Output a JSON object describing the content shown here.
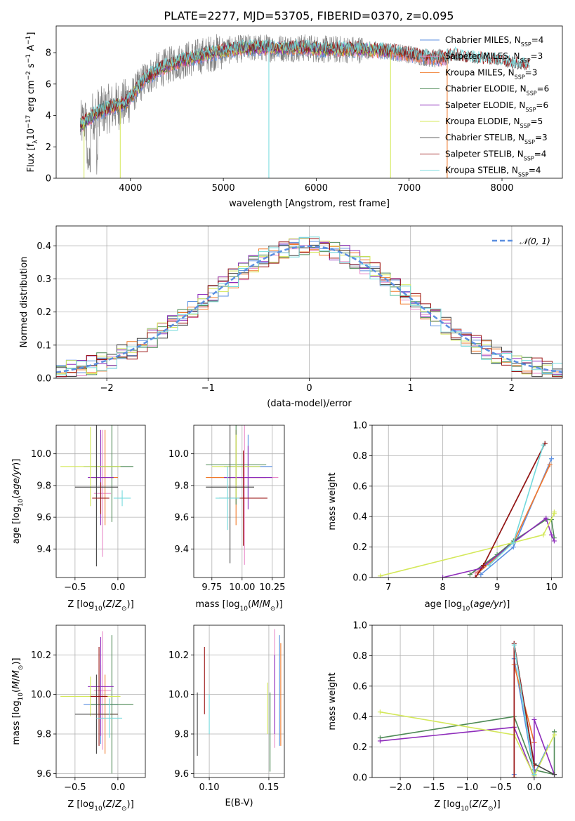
{
  "page": {
    "title": "PLATE=2277, MJD=53705, FIBERID=0370, z=0.095"
  },
  "colors": {
    "Chabrier MILES": "#5b8fe0",
    "Salpeter MILES": "#e88ac8",
    "Kroupa MILES": "#f07a2a",
    "Chabrier ELODIE": "#4e8a56",
    "Salpeter ELODIE": "#8e2dbb",
    "Kroupa ELODIE": "#d4e85a",
    "Chabrier STELIB": "#444444",
    "Salpeter STELIB": "#9b1616",
    "Kroupa STELIB": "#72d9dc",
    "spectrum": "#808080"
  },
  "legend": [
    {
      "name": "Chabrier MILES",
      "n": "4"
    },
    {
      "name": "Salpeter MILES",
      "n": "3"
    },
    {
      "name": "Kroupa MILES",
      "n": "3"
    },
    {
      "name": "Chabrier ELODIE",
      "n": "6"
    },
    {
      "name": "Salpeter ELODIE",
      "n": "6"
    },
    {
      "name": "Kroupa ELODIE",
      "n": "5"
    },
    {
      "name": "Chabrier STELIB",
      "n": "3"
    },
    {
      "name": "Salpeter STELIB",
      "n": "4"
    },
    {
      "name": "Kroupa STELIB",
      "n": "4"
    }
  ],
  "chart_data": [
    {
      "id": "spectrum",
      "type": "line",
      "xlabel": "wavelength [Angstrom, rest frame]",
      "ylabel": "Flux [f_λ 10^-17 erg cm^-2 s^-1 A^-1]",
      "xlim": [
        3200,
        8650
      ],
      "ylim": [
        0,
        9.7
      ],
      "xticks": [
        4000,
        5000,
        6000,
        7000,
        8000
      ],
      "yticks": [
        0,
        2,
        4,
        6,
        8
      ],
      "continuum": {
        "x": [
          3450,
          3550,
          3650,
          3800,
          3950,
          4050,
          4150,
          4300,
          4500,
          4700,
          4900,
          5100,
          5300,
          5500,
          5700,
          5900,
          6100,
          6300,
          6500,
          6700,
          6900,
          7100,
          7300,
          7500,
          7700,
          7900,
          8100,
          8300
        ],
        "y": [
          3.3,
          3.8,
          4.2,
          4.5,
          4.8,
          5.5,
          6.3,
          6.9,
          7.4,
          7.7,
          8.0,
          8.2,
          8.3,
          8.3,
          8.3,
          8.3,
          8.2,
          8.2,
          8.2,
          8.1,
          8.0,
          7.8,
          7.6,
          7.8,
          7.6,
          7.5,
          7.3,
          7.1
        ]
      },
      "features": [
        {
          "x": 3500,
          "note": "dip",
          "y": 0.0
        },
        {
          "x": 3890,
          "note": "dip",
          "y": 0.0
        },
        {
          "x": 5490,
          "note": "dip",
          "y": 0.0
        },
        {
          "x": 6800,
          "note": "dip",
          "y": 0.0
        },
        {
          "x": 7410,
          "note": "dip",
          "y": 0.0
        }
      ]
    },
    {
      "id": "residuals",
      "type": "histogram",
      "xlabel": "(data-model)/error",
      "ylabel": "Normed distribution",
      "xlim": [
        -2.5,
        2.5
      ],
      "ylim": [
        0,
        0.46
      ],
      "xticks": [
        -2,
        -1,
        0,
        1,
        2
      ],
      "yticks": [
        0.0,
        0.1,
        0.2,
        0.3,
        0.4
      ],
      "legend": "N(0,1)",
      "normal_color": "#5b8fe0",
      "bin_width": 0.1,
      "bin_start": -2.5
    },
    {
      "id": "age_vs_Z",
      "type": "errorbar",
      "xlabel": "Z [log10(Z/Z⊙)]",
      "ylabel": "age [log10(age/yr)]",
      "xlim": [
        -0.72,
        0.32
      ],
      "ylim": [
        9.22,
        10.18
      ],
      "xticks": [
        -0.5,
        0.0
      ],
      "yticks": [
        9.4,
        9.6,
        9.8,
        10.0
      ],
      "points": [
        {
          "m": "Chabrier MILES",
          "x": -0.2,
          "y": 9.92,
          "xe": 0.2,
          "ye": 0.2
        },
        {
          "m": "Salpeter MILES",
          "x": -0.18,
          "y": 9.75,
          "xe": 0.1,
          "ye": 0.4
        },
        {
          "m": "Kroupa MILES",
          "x": -0.15,
          "y": 9.85,
          "xe": 0.15,
          "ye": 0.3
        },
        {
          "m": "Chabrier ELODIE",
          "x": -0.07,
          "y": 9.92,
          "xe": 0.25,
          "ye": 0.35
        },
        {
          "m": "Salpeter ELODIE",
          "x": -0.2,
          "y": 9.85,
          "xe": 0.15,
          "ye": 0.3
        },
        {
          "m": "Kroupa ELODIE",
          "x": -0.32,
          "y": 9.92,
          "xe": 0.35,
          "ye": 0.25
        },
        {
          "m": "Chabrier STELIB",
          "x": -0.25,
          "y": 9.79,
          "xe": 0.25,
          "ye": 0.5
        },
        {
          "m": "Salpeter STELIB",
          "x": -0.2,
          "y": 9.72,
          "xe": 0.1,
          "ye": 0.1
        },
        {
          "m": "Kroupa STELIB",
          "x": 0.05,
          "y": 9.72,
          "xe": 0.1,
          "ye": 0.05
        }
      ]
    },
    {
      "id": "age_vs_mass",
      "type": "errorbar",
      "xlabel": "mass [log10(M/M⊙)]",
      "ylabel": "",
      "xlim": [
        9.6,
        10.35
      ],
      "ylim": [
        9.22,
        10.18
      ],
      "xticks": [
        9.75,
        10.0,
        10.25
      ],
      "yticks": [
        9.4,
        9.6,
        9.8,
        10.0
      ],
      "points": [
        {
          "m": "Chabrier MILES",
          "x": 10.05,
          "y": 9.92,
          "xe": 0.2,
          "ye": 0.2
        },
        {
          "m": "Salpeter MILES",
          "x": 10.02,
          "y": 9.85,
          "xe": 0.28,
          "ye": 0.55
        },
        {
          "m": "Kroupa MILES",
          "x": 9.95,
          "y": 9.85,
          "xe": 0.25,
          "ye": 0.3
        },
        {
          "m": "Chabrier ELODIE",
          "x": 9.95,
          "y": 9.93,
          "xe": 0.25,
          "ye": 0.25
        },
        {
          "m": "Salpeter ELODIE",
          "x": 10.05,
          "y": 9.85,
          "xe": 0.2,
          "ye": 0.2
        },
        {
          "m": "Kroupa ELODIE",
          "x": 9.95,
          "y": 9.92,
          "xe": 0.2,
          "ye": 0.2
        },
        {
          "m": "Chabrier STELIB",
          "x": 9.9,
          "y": 9.79,
          "xe": 0.2,
          "ye": 0.48
        },
        {
          "m": "Salpeter STELIB",
          "x": 10.01,
          "y": 9.72,
          "xe": 0.2,
          "ye": 0.3
        },
        {
          "m": "Kroupa STELIB",
          "x": 9.88,
          "y": 9.72,
          "xe": 0.1,
          "ye": 0.2
        }
      ]
    },
    {
      "id": "massweight_vs_age",
      "type": "line",
      "xlabel": "age [log10(age/yr)]",
      "ylabel": "mass weight",
      "xlim": [
        6.7,
        10.2
      ],
      "ylim": [
        0,
        1.0
      ],
      "xticks": [
        7,
        8,
        9,
        10
      ],
      "yticks": [
        0.0,
        0.2,
        0.4,
        0.6,
        0.8,
        1.0
      ],
      "series": [
        {
          "m": "Chabrier MILES",
          "x": [
            8.7,
            9.3,
            10.0
          ],
          "y": [
            0.02,
            0.2,
            0.78
          ]
        },
        {
          "m": "Salpeter MILES",
          "x": [
            8.6,
            9.3,
            9.97
          ],
          "y": [
            0.03,
            0.23,
            0.74
          ]
        },
        {
          "m": "Kroupa MILES",
          "x": [
            8.65,
            9.3,
            9.97
          ],
          "y": [
            0.03,
            0.23,
            0.74
          ]
        },
        {
          "m": "Chabrier ELODIE",
          "x": [
            8.5,
            9.0,
            9.3,
            9.9,
            10.0,
            10.05
          ],
          "y": [
            0.02,
            0.15,
            0.24,
            0.38,
            0.38,
            0.26
          ]
        },
        {
          "m": "Salpeter ELODIE",
          "x": [
            8.0,
            8.7,
            9.3,
            9.9,
            10.0,
            10.05
          ],
          "y": [
            0.0,
            0.06,
            0.23,
            0.39,
            0.28,
            0.24
          ]
        },
        {
          "m": "Kroupa ELODIE",
          "x": [
            6.85,
            9.3,
            9.85,
            10.05,
            10.05
          ],
          "y": [
            0.01,
            0.23,
            0.28,
            0.42,
            0.43
          ]
        },
        {
          "m": "Chabrier STELIB",
          "x": [
            8.6,
            8.75,
            9.88
          ],
          "y": [
            0.0,
            0.08,
            0.88
          ]
        },
        {
          "m": "Salpeter STELIB",
          "x": [
            8.6,
            8.75,
            9.88
          ],
          "y": [
            0.0,
            0.08,
            0.88
          ]
        },
        {
          "m": "Kroupa STELIB",
          "x": [
            8.85,
            9.3,
            9.85
          ],
          "y": [
            0.08,
            0.23,
            0.87
          ]
        }
      ]
    },
    {
      "id": "mass_vs_Z",
      "type": "errorbar",
      "xlabel": "Z [log10(Z/Z⊙)]",
      "ylabel": "mass [log10(M/M⊙)]",
      "xlim": [
        -0.72,
        0.32
      ],
      "ylim": [
        9.58,
        10.35
      ],
      "xticks": [
        -0.5,
        0.0
      ],
      "yticks": [
        9.6,
        9.8,
        10.0,
        10.2
      ],
      "points": [
        {
          "m": "Chabrier MILES",
          "x": -0.2,
          "y": 9.95,
          "xe": 0.2,
          "ye": 0.2
        },
        {
          "m": "Salpeter MILES",
          "x": -0.18,
          "y": 10.02,
          "xe": 0.1,
          "ye": 0.3
        },
        {
          "m": "Kroupa MILES",
          "x": -0.15,
          "y": 9.9,
          "xe": 0.15,
          "ye": 0.2
        },
        {
          "m": "Chabrier ELODIE",
          "x": -0.07,
          "y": 9.95,
          "xe": 0.25,
          "ye": 0.35
        },
        {
          "m": "Salpeter ELODIE",
          "x": -0.2,
          "y": 10.04,
          "xe": 0.15,
          "ye": 0.25
        },
        {
          "m": "Kroupa ELODIE",
          "x": -0.32,
          "y": 9.99,
          "xe": 0.35,
          "ye": 0.1
        },
        {
          "m": "Chabrier STELIB",
          "x": -0.25,
          "y": 9.9,
          "xe": 0.25,
          "ye": 0.2
        },
        {
          "m": "Salpeter STELIB",
          "x": -0.22,
          "y": 9.99,
          "xe": 0.1,
          "ye": 0.25
        },
        {
          "m": "Kroupa STELIB",
          "x": -0.1,
          "y": 9.88,
          "xe": 0.15,
          "ye": 0.1
        }
      ]
    },
    {
      "id": "mass_vs_EBV",
      "type": "errorbar",
      "xlabel": "E(B-V)",
      "ylabel": "",
      "xlim": [
        0.087,
        0.163
      ],
      "ylim": [
        9.58,
        10.35
      ],
      "xticks": [
        0.1,
        0.15
      ],
      "yticks": [
        9.6,
        9.8,
        10.0,
        10.2
      ],
      "points": [
        {
          "m": "Chabrier MILES",
          "x": 0.159,
          "y": 10.02,
          "xe": 0.0,
          "ye": 0.28
        },
        {
          "m": "Salpeter MILES",
          "x": 0.155,
          "y": 10.03,
          "xe": 0.0,
          "ye": 0.3
        },
        {
          "m": "Kroupa MILES",
          "x": 0.16,
          "y": 10.0,
          "xe": 0.0,
          "ye": 0.26
        },
        {
          "m": "Chabrier ELODIE",
          "x": 0.151,
          "y": 9.81,
          "xe": 0.0,
          "ye": 0.2
        },
        {
          "m": "Salpeter ELODIE",
          "x": 0.155,
          "y": 10.0,
          "xe": 0.0,
          "ye": 0.2
        },
        {
          "m": "Kroupa ELODIE",
          "x": 0.149,
          "y": 9.93,
          "xe": 0.0,
          "ye": 0.13
        },
        {
          "m": "Chabrier STELIB",
          "x": 0.09,
          "y": 9.85,
          "xe": 0.0,
          "ye": 0.16
        },
        {
          "m": "Salpeter STELIB",
          "x": 0.096,
          "y": 10.07,
          "xe": 0.0,
          "ye": 0.17
        },
        {
          "m": "Kroupa STELIB",
          "x": 0.1,
          "y": 9.9,
          "xe": 0.0,
          "ye": 0.1
        }
      ]
    },
    {
      "id": "massweight_vs_Z",
      "type": "line",
      "xlabel": "Z [log10(Z/Z⊙)]",
      "ylabel": "mass weight",
      "xlim": [
        -2.42,
        0.42
      ],
      "ylim": [
        0,
        1.0
      ],
      "xticks": [
        -2.0,
        -1.5,
        -1.0,
        -0.5,
        0.0
      ],
      "yticks": [
        0.0,
        0.2,
        0.4,
        0.6,
        0.8,
        1.0
      ],
      "series": [
        {
          "m": "Chabrier MILES",
          "x": [
            -0.3,
            -0.3,
            0.0,
            0.2
          ],
          "y": [
            0.02,
            0.78,
            0.02,
            0.2
          ]
        },
        {
          "m": "Salpeter MILES",
          "x": [
            -0.3,
            -0.3,
            0.0
          ],
          "y": [
            0.0,
            0.74,
            0.23
          ]
        },
        {
          "m": "Kroupa MILES",
          "x": [
            -0.3,
            -0.3,
            0.0,
            0.0
          ],
          "y": [
            0.0,
            0.74,
            0.23,
            0.02
          ]
        },
        {
          "m": "Chabrier ELODIE",
          "x": [
            -2.3,
            -0.3,
            0.0,
            0.3,
            0.3
          ],
          "y": [
            0.26,
            0.4,
            0.05,
            0.02,
            0.3
          ]
        },
        {
          "m": "Salpeter ELODIE",
          "x": [
            -2.3,
            -0.3,
            0.0,
            0.0,
            0.3
          ],
          "y": [
            0.24,
            0.33,
            0.0,
            0.38,
            0.02
          ]
        },
        {
          "m": "Kroupa ELODIE",
          "x": [
            -2.3,
            -0.3,
            0.0,
            0.3
          ],
          "y": [
            0.43,
            0.28,
            0.01,
            0.28
          ]
        },
        {
          "m": "Chabrier STELIB",
          "x": [
            -0.3,
            0.0,
            0.3
          ],
          "y": [
            0.88,
            0.09,
            0.02
          ]
        },
        {
          "m": "Salpeter STELIB",
          "x": [
            -0.3,
            -0.3,
            0.0
          ],
          "y": [
            0.0,
            0.88,
            0.08
          ]
        },
        {
          "m": "Kroupa STELIB",
          "x": [
            -0.3,
            0.0
          ],
          "y": [
            0.87,
            0.02
          ]
        }
      ]
    }
  ]
}
